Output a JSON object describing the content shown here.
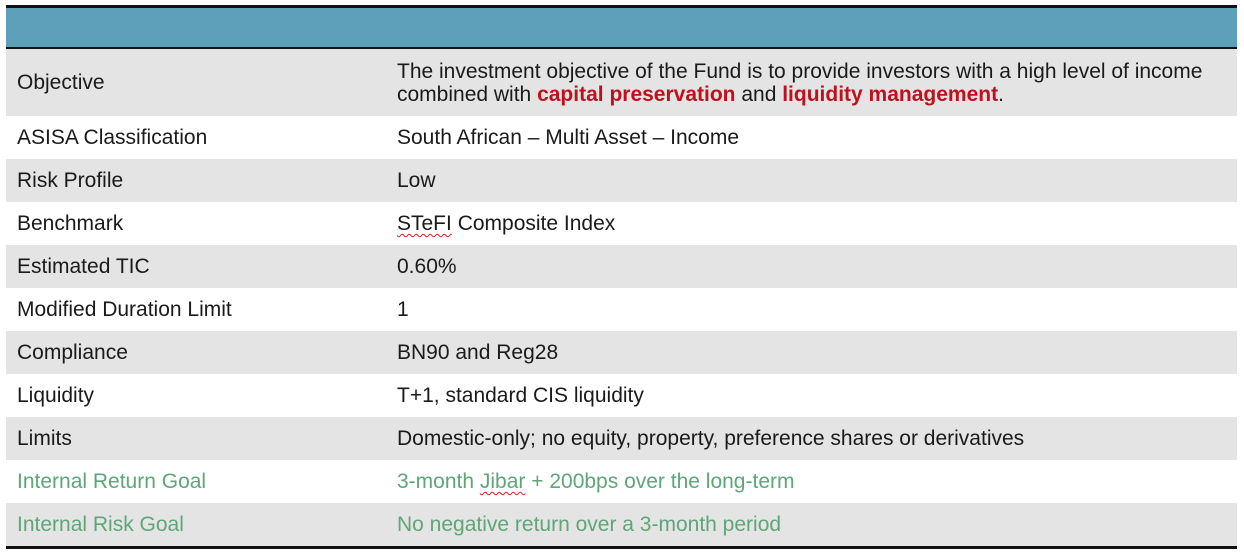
{
  "table": {
    "objective": {
      "label": "Objective",
      "text_1": "The investment objective of the Fund is to provide investors with a high level of income combined with ",
      "highlight_1": "capital preservation",
      "text_2": " and ",
      "highlight_2": "liquidity management",
      "text_3": "."
    },
    "rows": [
      {
        "label": "ASISA Classification",
        "value": "South African – Multi Asset – Income"
      },
      {
        "label": "Risk Profile",
        "value": "Low"
      },
      {
        "label": "Benchmark",
        "value_marked": "STeFI",
        "value_rest": " Composite Index"
      },
      {
        "label": "Estimated TIC",
        "value": "0.60%"
      },
      {
        "label": "Modified Duration Limit",
        "value": "1"
      },
      {
        "label": "Compliance",
        "value": "BN90 and Reg28"
      },
      {
        "label": "Liquidity",
        "value": "T+1, standard CIS liquidity"
      },
      {
        "label": "Limits",
        "value": "Domestic-only; no equity, property, preference shares or derivatives"
      },
      {
        "label": "Internal Return Goal",
        "value_pre": "3-month ",
        "value_marked": "Jibar",
        "value_rest": " + 200bps over the long-term"
      },
      {
        "label": "Internal Risk Goal",
        "value": "No negative return over a 3-month period"
      }
    ]
  },
  "colors": {
    "header_band": "#5e9fb9",
    "stripe": "#e4e4e4",
    "highlight": "#c0101c",
    "goal_text": "#5ea678"
  }
}
